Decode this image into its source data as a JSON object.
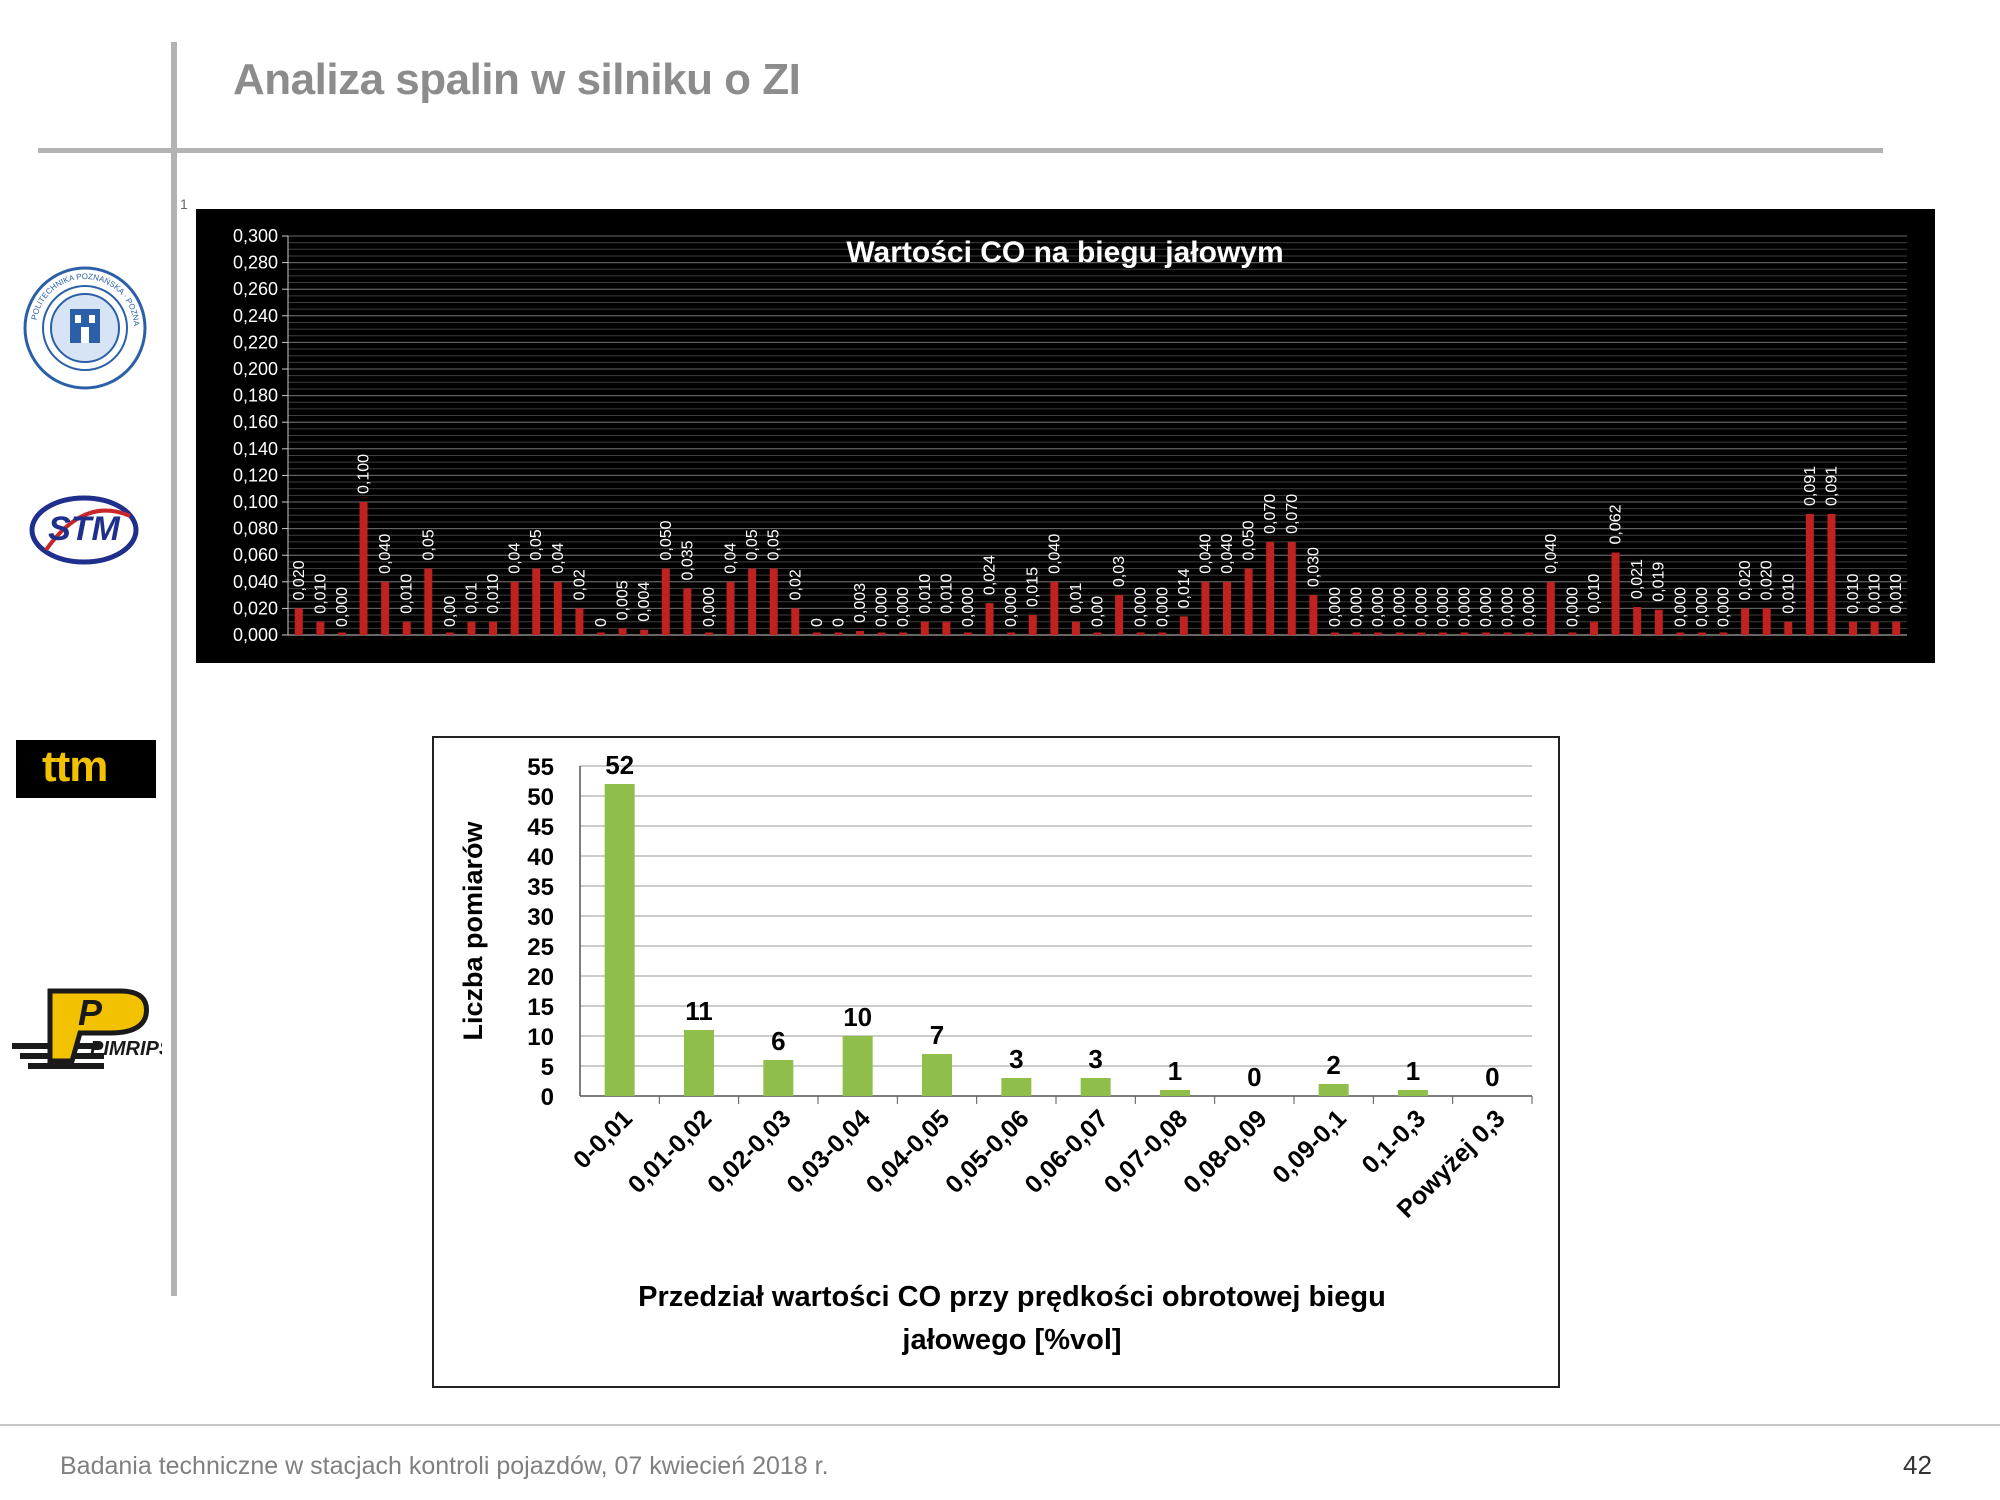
{
  "slide": {
    "title": "Analiza spalin w silniku o ZI",
    "footer": "Badania techniczne w stacjach kontroli pojazdów, 07 kwiecień 2018 r.",
    "page_number": "42",
    "stray_mark": "1"
  },
  "logos": {
    "ttm_text": "ttm",
    "stm_text": "STM",
    "pimrips_text": "PIMRIPS",
    "university_seal_text": "POLITECHNIKA POZNAŃSKA · POZNAN UNIVERSITY OF TECHNOLOGY"
  },
  "colors": {
    "chart1_background": "#000000",
    "chart1_bar": "#c0221f",
    "chart2_bar": "#8fbf4a",
    "ttm_background": "#000000",
    "ttm_text": "#f2c200"
  },
  "chart_data": [
    {
      "type": "bar",
      "title": "Wartości CO na biegu jałowym",
      "ylim": [
        0,
        0.3
      ],
      "yticks": [
        "0,000",
        "0,020",
        "0,040",
        "0,060",
        "0,080",
        "0,100",
        "0,120",
        "0,140",
        "0,160",
        "0,180",
        "0,200",
        "0,220",
        "0,240",
        "0,260",
        "0,280",
        "0,300"
      ],
      "grid": true,
      "values": [
        0.02,
        0.01,
        0.0,
        0.1,
        0.04,
        0.01,
        0.05,
        0.0,
        0.01,
        0.01,
        0.04,
        0.05,
        0.04,
        0.02,
        0,
        0.005,
        0.004,
        0.05,
        0.035,
        0.0,
        0.04,
        0.05,
        0.05,
        0.02,
        0,
        0,
        0.003,
        0.0,
        0.0,
        0.01,
        0.01,
        0.0,
        0.024,
        0.0,
        0.015,
        0.04,
        0.01,
        0.0,
        0.03,
        0.0,
        0.0,
        0.014,
        0.04,
        0.04,
        0.05,
        0.07,
        0.07,
        0.03,
        0.0,
        0.0,
        0.0,
        0.0,
        0.0,
        0.0,
        0.0,
        0.0,
        0.0,
        0.0,
        0.04,
        0.0,
        0.01,
        0.062,
        0.021,
        0.019,
        0.0,
        0.0,
        0.0,
        0.02,
        0.02,
        0.01,
        0.091,
        0.091,
        0.01,
        0.01,
        0.01
      ],
      "labels": [
        "0,020",
        "0,010",
        "0,000",
        "0,100",
        "0,040",
        "0,010",
        "0,05",
        "0,00",
        "0,01",
        "0,010",
        "0,04",
        "0,05",
        "0,04",
        "0,02",
        "0",
        "0,005",
        "0,004",
        "0,050",
        "0,035",
        "0,000",
        "0,04",
        "0,05",
        "0,05",
        "0,02",
        "0",
        "0",
        "0,003",
        "0,000",
        "0,000",
        "0,010",
        "0,010",
        "0,000",
        "0,024",
        "0,000",
        "0,015",
        "0,040",
        "0,01",
        "0,00",
        "0,03",
        "0,000",
        "0,000",
        "0,014",
        "0,040",
        "0,040",
        "0,050",
        "0,070",
        "0,070",
        "0,030",
        "0,000",
        "0,000",
        "0,000",
        "0,000",
        "0,000",
        "0,000",
        "0,000",
        "0,000",
        "0,000",
        "0,000",
        "0,040",
        "0,000",
        "0,010",
        "0,062",
        "0,021",
        "0,019",
        "0,000",
        "0,000",
        "0,000",
        "0,020",
        "0,020",
        "0,010",
        "0,091",
        "0,091",
        "0,010",
        "0,010",
        "0,010"
      ]
    },
    {
      "type": "bar",
      "categories": [
        "0-0,01",
        "0,01-0,02",
        "0,02-0,03",
        "0,03-0,04",
        "0,04-0,05",
        "0,05-0,06",
        "0,06-0,07",
        "0,07-0,08",
        "0,08-0,09",
        "0,09-0,1",
        "0,1-0,3",
        "Powyżej 0,3"
      ],
      "values": [
        52,
        11,
        6,
        10,
        7,
        3,
        3,
        1,
        0,
        2,
        1,
        0
      ],
      "ylabel": "Liczba pomiarów",
      "xlabel_line1": "Przedział wartości CO przy prędkości obrotowej  biegu",
      "xlabel_line2": "jałowego [%vol]",
      "ylim": [
        0,
        55
      ],
      "yticks": [
        "0",
        "5",
        "10",
        "15",
        "20",
        "25",
        "30",
        "35",
        "40",
        "45",
        "50",
        "55"
      ],
      "grid": true
    }
  ]
}
